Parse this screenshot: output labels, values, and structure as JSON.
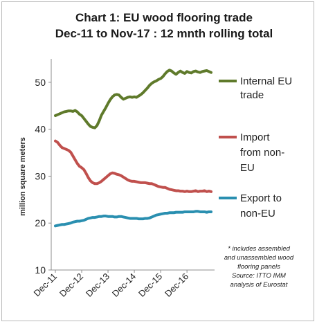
{
  "chart_data": {
    "type": "line",
    "title_lines": [
      "Chart 1: EU wood flooring trade",
      "Dec-11 to Nov-17 : 12 mnth rolling total"
    ],
    "ylabel": "million square meters",
    "xlabel": "",
    "ylim": [
      10,
      55
    ],
    "yticks": [
      10,
      20,
      30,
      40,
      50
    ],
    "x_tick_labels": [
      "Dec-11",
      "Dec-12",
      "Dec-13",
      "Dec-14",
      "Dec-15",
      "Dec-16"
    ],
    "x": [
      "Dec-11",
      "Jan-12",
      "Feb-12",
      "Mar-12",
      "Apr-12",
      "May-12",
      "Jun-12",
      "Jul-12",
      "Aug-12",
      "Sep-12",
      "Oct-12",
      "Nov-12",
      "Dec-12",
      "Jan-13",
      "Feb-13",
      "Mar-13",
      "Apr-13",
      "May-13",
      "Jun-13",
      "Jul-13",
      "Aug-13",
      "Sep-13",
      "Oct-13",
      "Nov-13",
      "Dec-13",
      "Jan-14",
      "Feb-14",
      "Mar-14",
      "Apr-14",
      "May-14",
      "Jun-14",
      "Jul-14",
      "Aug-14",
      "Sep-14",
      "Oct-14",
      "Nov-14",
      "Dec-14",
      "Jan-15",
      "Feb-15",
      "Mar-15",
      "Apr-15",
      "May-15",
      "Jun-15",
      "Jul-15",
      "Aug-15",
      "Sep-15",
      "Oct-15",
      "Nov-15",
      "Dec-15",
      "Jan-16",
      "Feb-16",
      "Mar-16",
      "Apr-16",
      "May-16",
      "Jun-16",
      "Jul-16",
      "Aug-16",
      "Sep-16",
      "Oct-16",
      "Nov-16",
      "Dec-16",
      "Jan-17",
      "Feb-17",
      "Mar-17",
      "Apr-17",
      "May-17",
      "Jun-17",
      "Jul-17",
      "Aug-17",
      "Sep-17",
      "Oct-17",
      "Nov-17"
    ],
    "series": [
      {
        "name": "Internal EU trade",
        "legend_lines": [
          "Internal EU",
          "trade"
        ],
        "color": "#5f7a2b",
        "values": [
          42.9,
          43.1,
          43.3,
          43.5,
          43.7,
          43.8,
          43.9,
          43.9,
          43.8,
          44.0,
          43.7,
          43.2,
          42.9,
          42.3,
          41.7,
          41.1,
          40.6,
          40.4,
          40.3,
          40.8,
          41.8,
          43.0,
          43.8,
          44.6,
          45.5,
          46.3,
          46.9,
          47.3,
          47.4,
          47.3,
          46.8,
          46.4,
          46.6,
          46.8,
          46.9,
          46.8,
          46.9,
          46.8,
          47.1,
          47.4,
          47.8,
          48.3,
          48.8,
          49.4,
          49.8,
          50.1,
          50.3,
          50.6,
          50.8,
          51.2,
          51.8,
          52.3,
          52.6,
          52.4,
          52.0,
          51.7,
          52.1,
          52.4,
          52.1,
          51.9,
          52.3,
          52.1,
          52.0,
          52.3,
          52.4,
          52.2,
          52.1,
          52.3,
          52.4,
          52.5,
          52.3,
          52.1
        ]
      },
      {
        "name": "Import from non-EU",
        "legend_lines": [
          "Import",
          "from non-",
          "EU"
        ],
        "color": "#c0504d",
        "values": [
          37.5,
          37.2,
          36.6,
          36.1,
          35.9,
          35.7,
          35.5,
          35.1,
          34.3,
          33.5,
          32.7,
          32.1,
          31.8,
          31.4,
          30.6,
          29.7,
          29.0,
          28.6,
          28.4,
          28.4,
          28.6,
          28.9,
          29.3,
          29.7,
          30.1,
          30.5,
          30.7,
          30.6,
          30.4,
          30.3,
          30.1,
          29.8,
          29.5,
          29.2,
          29.0,
          28.9,
          28.9,
          28.8,
          28.7,
          28.6,
          28.6,
          28.6,
          28.5,
          28.4,
          28.4,
          28.2,
          28.0,
          27.8,
          27.7,
          27.6,
          27.6,
          27.4,
          27.2,
          27.1,
          27.0,
          26.9,
          26.9,
          26.8,
          26.8,
          26.7,
          26.8,
          26.7,
          26.7,
          26.8,
          26.9,
          26.7,
          26.8,
          26.8,
          26.9,
          26.7,
          26.8,
          26.7
        ]
      },
      {
        "name": "Export to non-EU",
        "legend_lines": [
          "Export to",
          "non-EU"
        ],
        "color": "#2a8fb0",
        "values": [
          19.4,
          19.5,
          19.6,
          19.7,
          19.7,
          19.8,
          19.9,
          20.0,
          20.2,
          20.3,
          20.4,
          20.4,
          20.5,
          20.6,
          20.8,
          21.0,
          21.1,
          21.2,
          21.2,
          21.3,
          21.4,
          21.4,
          21.5,
          21.5,
          21.4,
          21.4,
          21.4,
          21.3,
          21.3,
          21.4,
          21.4,
          21.3,
          21.2,
          21.1,
          21.0,
          21.0,
          21.0,
          21.0,
          20.9,
          20.9,
          20.9,
          21.0,
          21.0,
          21.1,
          21.3,
          21.5,
          21.7,
          21.8,
          21.9,
          22.0,
          22.1,
          22.1,
          22.2,
          22.2,
          22.2,
          22.3,
          22.3,
          22.3,
          22.3,
          22.4,
          22.4,
          22.4,
          22.4,
          22.4,
          22.5,
          22.5,
          22.4,
          22.4,
          22.4,
          22.3,
          22.4,
          22.4
        ]
      }
    ],
    "annotation_lines": [
      "* includes assembled",
      "and unassembled wood",
      "flooring panels",
      "Source: ITTO IMM",
      "analysis of Eurostat"
    ],
    "legend_position": "right",
    "grid": false
  }
}
